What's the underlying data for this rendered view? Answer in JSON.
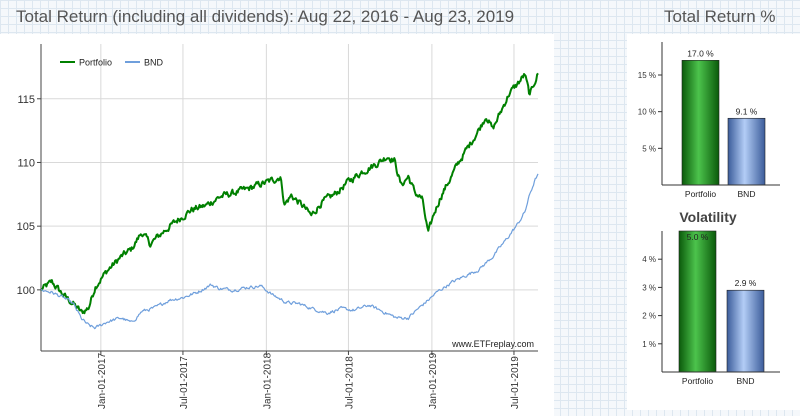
{
  "header": {
    "main_title": "Total Return (including all dividends): Aug 22, 2016 - Aug 23, 2019",
    "return_title": "Total Return %"
  },
  "colors": {
    "portfolio": "#008000",
    "bnd": "#6f9fdc"
  },
  "chart_data": [
    {
      "type": "line",
      "title": "Total Return (including all dividends): Aug 22, 2016 - Aug 23, 2019",
      "x_ticks": [
        "Jan-01-2017",
        "Jul-01-2017",
        "Jan-01-2018",
        "Jul-01-2018",
        "Jan-01-2019",
        "Jul-01-2019"
      ],
      "y_ticks": [
        100,
        105,
        110,
        115
      ],
      "ylim": [
        95.2,
        119.3
      ],
      "xlim": [
        "2016-08-22",
        "2019-08-23"
      ],
      "grid": true,
      "legend": "top-left",
      "watermark": "www.ETFreplay.com",
      "series": [
        {
          "name": "Portfolio",
          "color": "#008000",
          "points": [
            [
              "2016-08-22",
              100.0
            ],
            [
              "2016-09-15",
              100.6
            ],
            [
              "2016-10-10",
              99.6
            ],
            [
              "2016-11-01",
              98.9
            ],
            [
              "2016-11-20",
              98.2
            ],
            [
              "2016-12-05",
              98.6
            ],
            [
              "2016-12-20",
              100.3
            ],
            [
              "2017-01-15",
              101.5
            ],
            [
              "2017-02-15",
              102.6
            ],
            [
              "2017-03-10",
              103.2
            ],
            [
              "2017-04-01",
              104.5
            ],
            [
              "2017-04-20",
              103.6
            ],
            [
              "2017-05-20",
              104.6
            ],
            [
              "2017-06-20",
              105.5
            ],
            [
              "2017-07-20",
              106.3
            ],
            [
              "2017-08-20",
              106.6
            ],
            [
              "2017-09-20",
              107.3
            ],
            [
              "2017-10-20",
              107.6
            ],
            [
              "2017-11-20",
              107.9
            ],
            [
              "2017-12-20",
              108.3
            ],
            [
              "2018-01-15",
              108.6
            ],
            [
              "2018-02-01",
              108.9
            ],
            [
              "2018-02-10",
              106.7
            ],
            [
              "2018-02-25",
              107.4
            ],
            [
              "2018-03-25",
              106.5
            ],
            [
              "2018-04-10",
              105.8
            ],
            [
              "2018-05-01",
              106.8
            ],
            [
              "2018-06-01",
              107.5
            ],
            [
              "2018-07-01",
              108.5
            ],
            [
              "2018-08-01",
              109.3
            ],
            [
              "2018-09-01",
              109.9
            ],
            [
              "2018-09-25",
              110.5
            ],
            [
              "2018-10-10",
              110.2
            ],
            [
              "2018-10-25",
              108.2
            ],
            [
              "2018-11-10",
              108.9
            ],
            [
              "2018-11-25",
              107.6
            ],
            [
              "2018-12-10",
              107.2
            ],
            [
              "2018-12-24",
              104.4
            ],
            [
              "2019-01-05",
              105.9
            ],
            [
              "2019-01-20",
              107.3
            ],
            [
              "2019-02-10",
              108.7
            ],
            [
              "2019-03-01",
              110.0
            ],
            [
              "2019-03-20",
              111.1
            ],
            [
              "2019-04-15",
              112.6
            ],
            [
              "2019-05-01",
              113.7
            ],
            [
              "2019-05-15",
              112.6
            ],
            [
              "2019-06-01",
              113.9
            ],
            [
              "2019-06-20",
              115.4
            ],
            [
              "2019-07-10",
              116.2
            ],
            [
              "2019-07-25",
              116.9
            ],
            [
              "2019-08-05",
              115.2
            ],
            [
              "2019-08-15",
              116.3
            ],
            [
              "2019-08-23",
              117.0
            ]
          ]
        },
        {
          "name": "BND",
          "color": "#6f9fdc",
          "points": [
            [
              "2016-08-22",
              100.0
            ],
            [
              "2016-09-15",
              99.8
            ],
            [
              "2016-10-10",
              99.4
            ],
            [
              "2016-11-01",
              98.9
            ],
            [
              "2016-11-20",
              97.7
            ],
            [
              "2016-12-05",
              97.2
            ],
            [
              "2016-12-20",
              97.0
            ],
            [
              "2017-01-15",
              97.5
            ],
            [
              "2017-02-15",
              97.8
            ],
            [
              "2017-03-10",
              97.4
            ],
            [
              "2017-04-01",
              98.3
            ],
            [
              "2017-05-01",
              98.6
            ],
            [
              "2017-06-01",
              99.2
            ],
            [
              "2017-07-01",
              99.4
            ],
            [
              "2017-08-01",
              99.8
            ],
            [
              "2017-09-01",
              100.4
            ],
            [
              "2017-09-20",
              100.1
            ],
            [
              "2017-10-20",
              100.0
            ],
            [
              "2017-11-20",
              100.2
            ],
            [
              "2017-12-20",
              100.3
            ],
            [
              "2018-01-15",
              99.6
            ],
            [
              "2018-02-15",
              99.0
            ],
            [
              "2018-03-15",
              98.9
            ],
            [
              "2018-04-15",
              98.5
            ],
            [
              "2018-05-15",
              98.2
            ],
            [
              "2018-06-15",
              98.5
            ],
            [
              "2018-07-15",
              98.4
            ],
            [
              "2018-08-15",
              98.8
            ],
            [
              "2018-09-15",
              98.3
            ],
            [
              "2018-10-15",
              97.8
            ],
            [
              "2018-11-10",
              97.8
            ],
            [
              "2018-12-01",
              98.5
            ],
            [
              "2018-12-24",
              99.2
            ],
            [
              "2019-01-15",
              99.9
            ],
            [
              "2019-02-15",
              100.6
            ],
            [
              "2019-03-15",
              101.1
            ],
            [
              "2019-04-15",
              101.6
            ],
            [
              "2019-05-15",
              102.6
            ],
            [
              "2019-06-15",
              104.0
            ],
            [
              "2019-07-10",
              105.2
            ],
            [
              "2019-07-25",
              106.1
            ],
            [
              "2019-08-05",
              107.5
            ],
            [
              "2019-08-15",
              108.5
            ],
            [
              "2019-08-23",
              109.1
            ]
          ]
        }
      ]
    },
    {
      "type": "bar",
      "categories": [
        "Portfolio",
        "BND"
      ],
      "values": [
        17.0,
        9.1
      ],
      "value_labels": [
        "17.0 %",
        "9.1 %"
      ],
      "y_ticks": [
        5,
        10,
        15
      ],
      "y_tick_labels": [
        "5 %",
        "10 %",
        "15 %"
      ],
      "ylim": [
        0,
        19.5
      ],
      "bar_colors": [
        "#1f8a1f",
        "#7ea4e6"
      ]
    },
    {
      "type": "bar",
      "title": "Volatility",
      "categories": [
        "Portfolio",
        "BND"
      ],
      "values": [
        5.0,
        2.9
      ],
      "value_labels": [
        "5.0 %",
        "2.9 %"
      ],
      "y_ticks": [
        1,
        2,
        3,
        4
      ],
      "y_tick_labels": [
        "1 %",
        "2 %",
        "3 %",
        "4 %"
      ],
      "ylim": [
        0,
        5.0
      ],
      "bar_colors": [
        "#1f8a1f",
        "#7ea4e6"
      ]
    }
  ]
}
